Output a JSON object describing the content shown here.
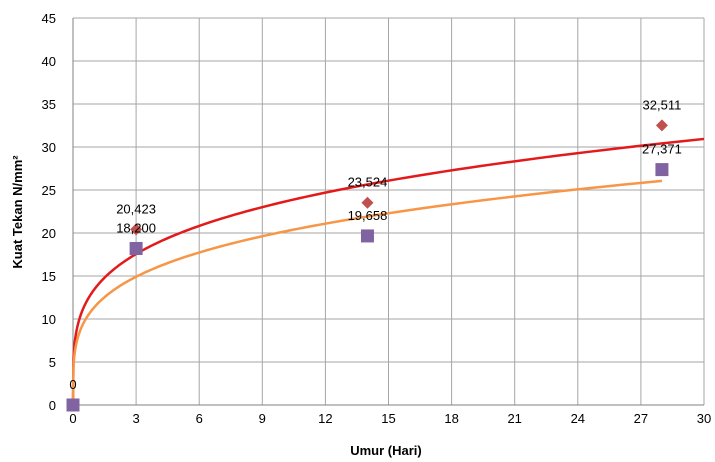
{
  "chart_data": {
    "type": "scatter",
    "title": "",
    "xlabel": "Umur (Hari)",
    "ylabel": "Kuat Tekan N/mm²",
    "xlim": [
      0,
      30
    ],
    "ylim": [
      0,
      45
    ],
    "x_ticks": [
      "0",
      "3",
      "6",
      "9",
      "12",
      "15",
      "18",
      "21",
      "24",
      "27",
      "30"
    ],
    "y_ticks": [
      "0",
      "5",
      "10",
      "15",
      "20",
      "25",
      "30",
      "35",
      "40",
      "45"
    ],
    "grid": true,
    "legend": "none",
    "series": [
      {
        "marker": "diamond",
        "color": "#c0504d",
        "trend_color": "#e31a1c",
        "points": [
          {
            "x": 0,
            "y": 0,
            "label": "0"
          },
          {
            "x": 3,
            "y": 20.423,
            "label": "20,423"
          },
          {
            "x": 14,
            "y": 23.524,
            "label": "23,524"
          },
          {
            "x": 28,
            "y": 32.511,
            "label": "32,511"
          }
        ],
        "trendline": {
          "type": "power",
          "a": 13.4,
          "b": 0.246,
          "x_range": [
            0.02,
            30
          ]
        }
      },
      {
        "marker": "square",
        "color": "#8064a2",
        "trend_color": "#f79646",
        "points": [
          {
            "x": 0,
            "y": 0,
            "label": ""
          },
          {
            "x": 3,
            "y": 18.2,
            "label": "18,200"
          },
          {
            "x": 14,
            "y": 19.658,
            "label": "19,658"
          },
          {
            "x": 28,
            "y": 27.371,
            "label": "27,371"
          }
        ],
        "trendline": {
          "type": "power",
          "a": 11.33,
          "b": 0.25,
          "x_range": [
            0.02,
            28
          ]
        }
      }
    ]
  }
}
